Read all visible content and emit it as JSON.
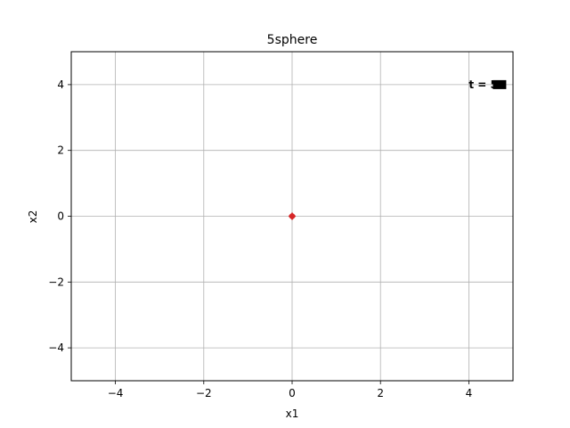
{
  "chart_data": {
    "type": "scatter",
    "title": "5sphere",
    "xlabel": "x1",
    "ylabel": "x2",
    "xlim": [
      -5,
      5
    ],
    "ylim": [
      -5,
      5
    ],
    "xticks": [
      -4,
      -2,
      0,
      2,
      4
    ],
    "yticks": [
      -4,
      -2,
      0,
      2,
      4
    ],
    "xtick_labels": [
      "−4",
      "−2",
      "0",
      "2",
      "4"
    ],
    "ytick_labels": [
      "−4",
      "−2",
      "0",
      "2",
      "4"
    ],
    "grid": true,
    "series": [
      {
        "points": [
          [
            0,
            0
          ],
          [
            0,
            0
          ],
          [
            0,
            0
          ]
        ],
        "color": "#d62728",
        "marker": "+"
      }
    ],
    "annotation": {
      "text": "t = 50",
      "x": 4,
      "y": 4,
      "overlap": "several frame labels drawn on top of each other"
    }
  }
}
